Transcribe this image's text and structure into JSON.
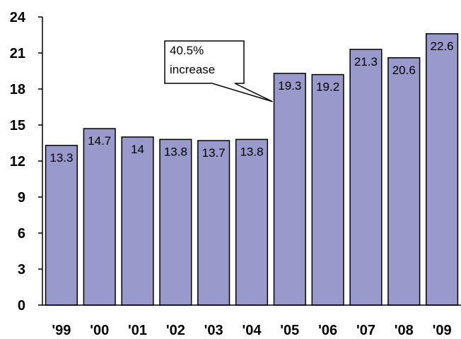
{
  "chart_data": {
    "type": "bar",
    "categories": [
      "'99",
      "'00",
      "'01",
      "'02",
      "'03",
      "'04",
      "'05",
      "'06",
      "'07",
      "'08",
      "'09"
    ],
    "values": [
      13.3,
      14.7,
      14,
      13.8,
      13.7,
      13.8,
      19.3,
      19.2,
      21.3,
      20.6,
      22.6
    ],
    "value_labels": [
      "13.3",
      "14.7",
      "14",
      "13.8",
      "13.7",
      "13.8",
      "19.3",
      "19.2",
      "21.3",
      "20.6",
      "22.6"
    ],
    "ylim": [
      0,
      24
    ],
    "yticks": [
      0,
      3,
      6,
      9,
      12,
      15,
      18,
      21,
      24
    ],
    "grid": false,
    "bar_color": "#9999cc",
    "annotation": {
      "lines": [
        "40.5%",
        "increase"
      ],
      "points_to": "'05"
    }
  }
}
